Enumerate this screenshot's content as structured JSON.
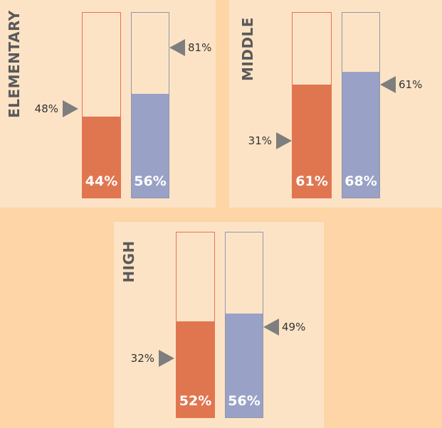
{
  "chart_data": [
    {
      "type": "bar",
      "title": "ELEMENTARY",
      "categories": [
        "orange",
        "blue"
      ],
      "values": [
        44,
        56
      ],
      "value_labels": [
        "44%",
        "56%"
      ],
      "markers": [
        {
          "bar": "orange",
          "value": 48,
          "label": "48%",
          "side": "left"
        },
        {
          "bar": "blue",
          "value": 81,
          "label": "81%",
          "side": "right"
        }
      ],
      "ylim": [
        0,
        100
      ]
    },
    {
      "type": "bar",
      "title": "MIDDLE",
      "categories": [
        "orange",
        "blue"
      ],
      "values": [
        61,
        68
      ],
      "value_labels": [
        "61%",
        "68%"
      ],
      "markers": [
        {
          "bar": "orange",
          "value": 31,
          "label": "31%",
          "side": "left"
        },
        {
          "bar": "blue",
          "value": 61,
          "label": "61%",
          "side": "right"
        }
      ],
      "ylim": [
        0,
        100
      ]
    },
    {
      "type": "bar",
      "title": "HIGH",
      "categories": [
        "orange",
        "blue"
      ],
      "values": [
        52,
        56
      ],
      "value_labels": [
        "52%",
        "56%"
      ],
      "markers": [
        {
          "bar": "orange",
          "value": 32,
          "label": "32%",
          "side": "left"
        },
        {
          "bar": "blue",
          "value": 49,
          "label": "49%",
          "side": "right"
        }
      ],
      "ylim": [
        0,
        100
      ]
    }
  ],
  "colors": {
    "background": "#fdd5a6",
    "panel": "#fde3c6",
    "orange": "#e07650",
    "blue": "#99a1c6",
    "marker": "#7e7e7e",
    "title": "#5a5a5a"
  }
}
